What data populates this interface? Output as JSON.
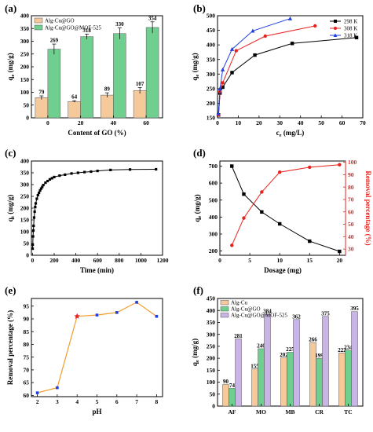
{
  "chart_data": [
    {
      "panel": "(a)",
      "type": "bar",
      "categories": [
        "0",
        "20",
        "40",
        "60"
      ],
      "series": [
        {
          "name": "Alg-Cu@GO",
          "values": [
            79,
            64,
            89,
            107
          ],
          "color": "#f6c99a",
          "errors": [
            7,
            3,
            9,
            12
          ]
        },
        {
          "name": "Alg-Cu@GO@MOF-525",
          "values": [
            269,
            318,
            330,
            354
          ],
          "color": "#6fcf8f",
          "errors": [
            20,
            10,
            22,
            22
          ]
        }
      ],
      "data_labels": [
        [
          "79",
          "64",
          "89",
          "107"
        ],
        [
          "269",
          "318",
          "330",
          "354"
        ]
      ],
      "xlabel": "Content of GO (%)",
      "ylabel_main": "q",
      "ylabel_sub": "e",
      "ylabel_unit": " (mg/g)",
      "ylim": [
        0,
        400
      ],
      "yticks": [
        "0",
        "50",
        "100",
        "150",
        "200",
        "250",
        "300",
        "350",
        "400"
      ],
      "legend": "top-left"
    },
    {
      "panel": "(b)",
      "type": "line",
      "series": [
        {
          "name": "298 K",
          "color": "#000000",
          "marker": "square",
          "x": [
            0.5,
            1.2,
            2.5,
            7,
            18,
            36,
            67
          ],
          "y": [
            160,
            235,
            255,
            305,
            365,
            405,
            425
          ]
        },
        {
          "name": "308 K",
          "color": "#e8211d",
          "marker": "circle",
          "x": [
            0.5,
            1.2,
            2.5,
            9,
            23,
            47
          ],
          "y": [
            160,
            240,
            270,
            380,
            430,
            465
          ]
        },
        {
          "name": "318 K",
          "color": "#1f3fe0",
          "marker": "triangle",
          "x": [
            0.4,
            1.2,
            2.5,
            7,
            17,
            35
          ],
          "y": [
            165,
            250,
            315,
            385,
            448,
            490
          ]
        }
      ],
      "xlabel_main": "c",
      "xlabel_sub": "e",
      "xlabel_unit": " (mg/L)",
      "ylabel_main": "q",
      "ylabel_sub": "e",
      "ylabel_unit": " (mg/g)",
      "xlim": [
        0,
        70
      ],
      "ylim": [
        150,
        500
      ],
      "xticks": [
        "0",
        "10",
        "20",
        "30",
        "40",
        "50",
        "60",
        "70"
      ],
      "yticks": [
        "150",
        "200",
        "250",
        "300",
        "350",
        "400",
        "450",
        "500"
      ],
      "legend": "top-right"
    },
    {
      "panel": "(c)",
      "type": "line",
      "series": [
        {
          "name": "",
          "color": "#000000",
          "marker": "square",
          "x": [
            1,
            2,
            5,
            8,
            10,
            15,
            20,
            25,
            30,
            40,
            50,
            60,
            70,
            80,
            90,
            100,
            120,
            140,
            160,
            180,
            200,
            250,
            300,
            360,
            420,
            480,
            540,
            600,
            720,
            900,
            1140
          ],
          "y": [
            28,
            45,
            80,
            105,
            125,
            160,
            185,
            205,
            220,
            240,
            255,
            265,
            275,
            283,
            290,
            298,
            308,
            315,
            322,
            327,
            332,
            338,
            342,
            347,
            350,
            353,
            355,
            358,
            362,
            364,
            365
          ]
        }
      ],
      "xlabel": "Time (min)",
      "ylabel_main": "q",
      "ylabel_sub": "t",
      "ylabel_unit": " (mg/g)",
      "xlim": [
        -10,
        1200
      ],
      "ylim": [
        0,
        400
      ],
      "xticks": [
        "0",
        "200",
        "400",
        "600",
        "800",
        "1000",
        "1200"
      ],
      "yticks": [
        "0",
        "50",
        "100",
        "150",
        "200",
        "250",
        "300",
        "350",
        "400"
      ]
    },
    {
      "panel": "(d)",
      "type": "line",
      "series": [
        {
          "name": "",
          "axis": "left",
          "color": "#000000",
          "marker": "square",
          "x": [
            2,
            4,
            7,
            10,
            15,
            20
          ],
          "y": [
            700,
            535,
            430,
            360,
            258,
            198
          ]
        },
        {
          "name": "",
          "axis": "right",
          "color": "#e8211d",
          "marker": "circle",
          "x": [
            2,
            4,
            7,
            10,
            15,
            20
          ],
          "y": [
            33,
            55,
            76,
            92,
            96,
            98
          ]
        }
      ],
      "xlabel": "Dosage (mg)",
      "ylabel_main": "q",
      "ylabel_sub": "e",
      "ylabel_unit": " (mg/g)",
      "ylabel_right": "Removal percentage (%)",
      "xlim": [
        0,
        21
      ],
      "ylim": [
        175,
        730
      ],
      "ylim_right": [
        25,
        101
      ],
      "xticks": [
        "0",
        "5",
        "10",
        "15",
        "20"
      ],
      "yticks": [
        "200",
        "300",
        "400",
        "500",
        "600",
        "700"
      ],
      "yticks_right": [
        "30",
        "40",
        "50",
        "60",
        "70",
        "80",
        "90",
        "100"
      ]
    },
    {
      "panel": "(e)",
      "type": "line",
      "series": [
        {
          "name": "",
          "color": "#f39c2b",
          "marker": "square",
          "marker_color": "#1f3fe0",
          "x": [
            2,
            3,
            4,
            5,
            6,
            7,
            8
          ],
          "y": [
            61,
            63,
            91,
            91.5,
            92.5,
            96.5,
            91
          ],
          "highlight_index": 2,
          "highlight_color": "#e8211d"
        }
      ],
      "xlabel": "pH",
      "ylabel": "Removal percentage (%)",
      "xlim": [
        1.7,
        8.3
      ],
      "ylim": [
        59.5,
        98
      ],
      "xticks": [
        "2",
        "3",
        "4",
        "5",
        "6",
        "7",
        "8"
      ],
      "yticks": [
        "60",
        "65",
        "70",
        "75",
        "80",
        "85",
        "90",
        "95"
      ]
    },
    {
      "panel": "(f)",
      "type": "bar",
      "categories": [
        "AF",
        "MO",
        "MB",
        "CR",
        "TC"
      ],
      "series": [
        {
          "name": "Alg-Cu",
          "values": [
            90,
            155,
            202,
            266,
            222
          ],
          "color": "#f6c99a"
        },
        {
          "name": "Alg-Cu@GO",
          "values": [
            74,
            240,
            225,
            199,
            234
          ],
          "color": "#6fcf8f"
        },
        {
          "name": "Alg-Cu@GO@MOF-525",
          "values": [
            281,
            384,
            362,
            375,
            395
          ],
          "color": "#c9b4e6"
        }
      ],
      "data_labels": [
        [
          "90",
          "155",
          "202",
          "266",
          "222"
        ],
        [
          "74",
          "240",
          "225",
          "199",
          "234"
        ],
        [
          "281",
          "384",
          "362",
          "375",
          "395"
        ]
      ],
      "ylabel_main": "q",
      "ylabel_sub": "e",
      "ylabel_unit": " (mg/g)",
      "ylim": [
        0,
        450
      ],
      "yticks": [
        "0",
        "50",
        "100",
        "150",
        "200",
        "250",
        "300",
        "350",
        "400",
        "450"
      ],
      "legend": "top-left"
    }
  ]
}
